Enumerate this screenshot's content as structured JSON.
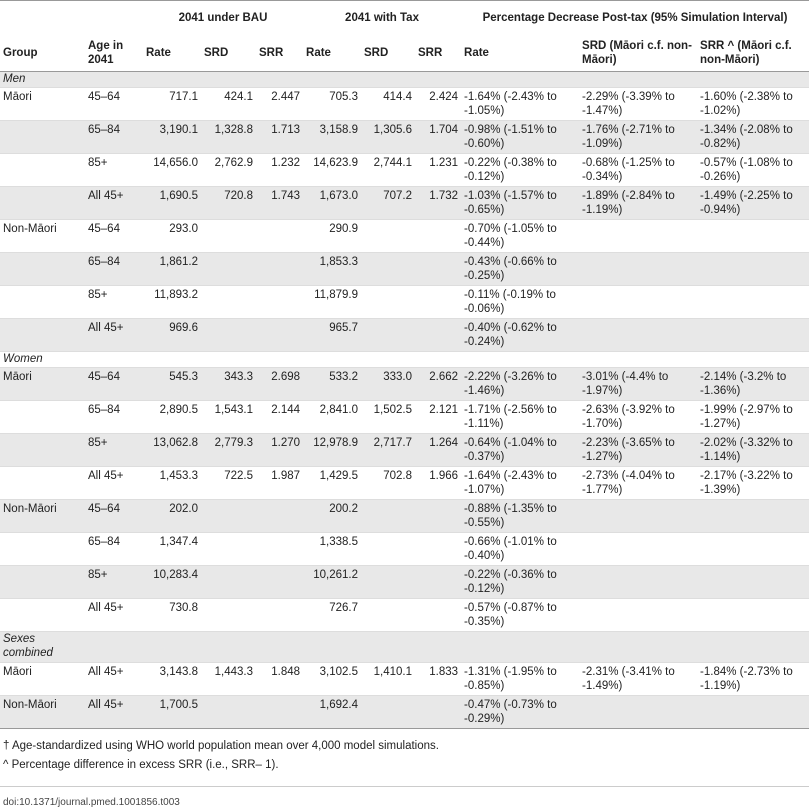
{
  "headers": {
    "group": "Group",
    "age": "Age in 2041",
    "bau": "2041 under BAU",
    "tax": "2041 with Tax",
    "pct": "Percentage Decrease Post-tax (95% Simulation Interval)",
    "rate": "Rate",
    "srd": "SRD",
    "srr": "SRR",
    "pct_rate": "Rate",
    "pct_srd": "SRD (Māori c.f. non-Māori)",
    "pct_srr": "SRR ^ (Māori c.f. non-Māori)"
  },
  "sections": {
    "men": "Men",
    "women": "Women",
    "combined": "Sexes combined"
  },
  "rows": [
    {
      "group": "Māori",
      "age": "45–64",
      "bau_rate": "717.1",
      "bau_srd": "424.1",
      "bau_srr": "2.447",
      "tax_rate": "705.3",
      "tax_srd": "414.4",
      "tax_srr": "2.424",
      "pct_rate": "-1.64% (-2.43% to -1.05%)",
      "pct_srd": "-2.29% (-3.39% to -1.47%)",
      "pct_srr": "-1.60% (-2.38% to -1.02%)"
    },
    {
      "group": "",
      "age": "65–84",
      "bau_rate": "3,190.1",
      "bau_srd": "1,328.8",
      "bau_srr": "1.713",
      "tax_rate": "3,158.9",
      "tax_srd": "1,305.6",
      "tax_srr": "1.704",
      "pct_rate": "-0.98% (-1.51% to -0.60%)",
      "pct_srd": "-1.76% (-2.71% to -1.09%)",
      "pct_srr": "-1.34% (-2.08% to -0.82%)"
    },
    {
      "group": "",
      "age": "85+",
      "bau_rate": "14,656.0",
      "bau_srd": "2,762.9",
      "bau_srr": "1.232",
      "tax_rate": "14,623.9",
      "tax_srd": "2,744.1",
      "tax_srr": "1.231",
      "pct_rate": "-0.22% (-0.38% to -0.12%)",
      "pct_srd": "-0.68% (-1.25% to -0.34%)",
      "pct_srr": "-0.57% (-1.08% to -0.26%)"
    },
    {
      "group": "",
      "age": "All 45+",
      "bau_rate": "1,690.5",
      "bau_srd": "720.8",
      "bau_srr": "1.743",
      "tax_rate": "1,673.0",
      "tax_srd": "707.2",
      "tax_srr": "1.732",
      "pct_rate": "-1.03% (-1.57% to -0.65%)",
      "pct_srd": "-1.89% (-2.84% to -1.19%)",
      "pct_srr": "-1.49% (-2.25% to -0.94%)"
    },
    {
      "group": "Non-Māori",
      "age": "45–64",
      "bau_rate": "293.0",
      "bau_srd": "",
      "bau_srr": "",
      "tax_rate": "290.9",
      "tax_srd": "",
      "tax_srr": "",
      "pct_rate": "-0.70% (-1.05% to -0.44%)",
      "pct_srd": "",
      "pct_srr": ""
    },
    {
      "group": "",
      "age": "65–84",
      "bau_rate": "1,861.2",
      "bau_srd": "",
      "bau_srr": "",
      "tax_rate": "1,853.3",
      "tax_srd": "",
      "tax_srr": "",
      "pct_rate": "-0.43% (-0.66% to -0.25%)",
      "pct_srd": "",
      "pct_srr": ""
    },
    {
      "group": "",
      "age": "85+",
      "bau_rate": "11,893.2",
      "bau_srd": "",
      "bau_srr": "",
      "tax_rate": "11,879.9",
      "tax_srd": "",
      "tax_srr": "",
      "pct_rate": "-0.11% (-0.19% to -0.06%)",
      "pct_srd": "",
      "pct_srr": ""
    },
    {
      "group": "",
      "age": "All 45+",
      "bau_rate": "969.6",
      "bau_srd": "",
      "bau_srr": "",
      "tax_rate": "965.7",
      "tax_srd": "",
      "tax_srr": "",
      "pct_rate": "-0.40% (-0.62% to -0.24%)",
      "pct_srd": "",
      "pct_srr": ""
    },
    {
      "group": "Māori",
      "age": "45–64",
      "bau_rate": "545.3",
      "bau_srd": "343.3",
      "bau_srr": "2.698",
      "tax_rate": "533.2",
      "tax_srd": "333.0",
      "tax_srr": "2.662",
      "pct_rate": "-2.22% (-3.26% to -1.46%)",
      "pct_srd": "-3.01% (-4.4% to -1.97%)",
      "pct_srr": "-2.14% (-3.2% to -1.36%)"
    },
    {
      "group": "",
      "age": "65–84",
      "bau_rate": "2,890.5",
      "bau_srd": "1,543.1",
      "bau_srr": "2.144",
      "tax_rate": "2,841.0",
      "tax_srd": "1,502.5",
      "tax_srr": "2.121",
      "pct_rate": "-1.71% (-2.56% to -1.11%)",
      "pct_srd": "-2.63% (-3.92% to -1.70%)",
      "pct_srr": "-1.99% (-2.97% to -1.27%)"
    },
    {
      "group": "",
      "age": "85+",
      "bau_rate": "13,062.8",
      "bau_srd": "2,779.3",
      "bau_srr": "1.270",
      "tax_rate": "12,978.9",
      "tax_srd": "2,717.7",
      "tax_srr": "1.264",
      "pct_rate": "-0.64% (-1.04% to -0.37%)",
      "pct_srd": "-2.23% (-3.65% to -1.27%)",
      "pct_srr": "-2.02% (-3.32% to -1.14%)"
    },
    {
      "group": "",
      "age": "All 45+",
      "bau_rate": "1,453.3",
      "bau_srd": "722.5",
      "bau_srr": "1.987",
      "tax_rate": "1,429.5",
      "tax_srd": "702.8",
      "tax_srr": "1.966",
      "pct_rate": "-1.64% (-2.43% to -1.07%)",
      "pct_srd": "-2.73% (-4.04% to -1.77%)",
      "pct_srr": "-2.17% (-3.22% to -1.39%)"
    },
    {
      "group": "Non-Māori",
      "age": "45–64",
      "bau_rate": "202.0",
      "bau_srd": "",
      "bau_srr": "",
      "tax_rate": "200.2",
      "tax_srd": "",
      "tax_srr": "",
      "pct_rate": "-0.88% (-1.35% to -0.55%)",
      "pct_srd": "",
      "pct_srr": ""
    },
    {
      "group": "",
      "age": "65–84",
      "bau_rate": "1,347.4",
      "bau_srd": "",
      "bau_srr": "",
      "tax_rate": "1,338.5",
      "tax_srd": "",
      "tax_srr": "",
      "pct_rate": "-0.66% (-1.01% to -0.40%)",
      "pct_srd": "",
      "pct_srr": ""
    },
    {
      "group": "",
      "age": "85+",
      "bau_rate": "10,283.4",
      "bau_srd": "",
      "bau_srr": "",
      "tax_rate": "10,261.2",
      "tax_srd": "",
      "tax_srr": "",
      "pct_rate": "-0.22% (-0.36% to -0.12%)",
      "pct_srd": "",
      "pct_srr": ""
    },
    {
      "group": "",
      "age": "All 45+",
      "bau_rate": "730.8",
      "bau_srd": "",
      "bau_srr": "",
      "tax_rate": "726.7",
      "tax_srd": "",
      "tax_srr": "",
      "pct_rate": "-0.57% (-0.87% to -0.35%)",
      "pct_srd": "",
      "pct_srr": ""
    },
    {
      "group": "Māori",
      "age": "All 45+",
      "bau_rate": "3,143.8",
      "bau_srd": "1,443.3",
      "bau_srr": "1.848",
      "tax_rate": "3,102.5",
      "tax_srd": "1,410.1",
      "tax_srr": "1.833",
      "pct_rate": "-1.31% (-1.95% to -0.85%)",
      "pct_srd": "-2.31% (-3.41% to -1.49%)",
      "pct_srr": "-1.84% (-2.73% to -1.19%)"
    },
    {
      "group": "Non-Māori",
      "age": "All 45+",
      "bau_rate": "1,700.5",
      "bau_srd": "",
      "bau_srr": "",
      "tax_rate": "1,692.4",
      "tax_srd": "",
      "tax_srr": "",
      "pct_rate": "-0.47% (-0.73% to -0.29%)",
      "pct_srd": "",
      "pct_srr": ""
    }
  ],
  "footnotes": {
    "dagger": "† Age-standardized using WHO world population mean over 4,000 model simulations.",
    "caret": "^ Percentage difference in excess SRR (i.e., SRR– 1)."
  },
  "doi": "doi:10.1371/journal.pmed.1001856.t003"
}
